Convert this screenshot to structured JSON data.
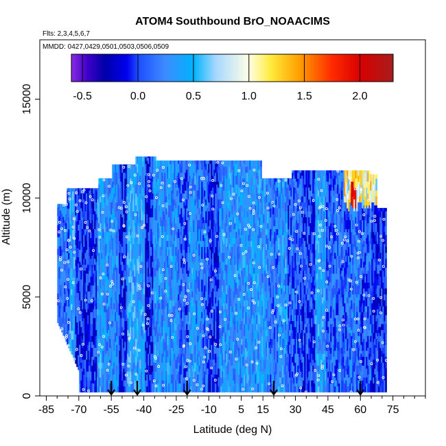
{
  "chart_data": {
    "type": "heatmap",
    "title": "ATOM4 Southbound BrO_NOAACIMS",
    "flights_note": "Flts: 2,3,4,5,6,7",
    "dates_note": "MMDD: 0427,0429,0501,0503,0506,0509",
    "xlabel": "Latitude (deg N)",
    "ylabel": "Altitude (m)",
    "xlim": [
      -88,
      90
    ],
    "ylim": [
      0,
      18000
    ],
    "x_ticks": [
      -85,
      -70,
      -55,
      -40,
      -25,
      -10,
      5,
      15,
      30,
      45,
      60,
      75
    ],
    "x_tick_labels": [
      "-85",
      "-70",
      "-55",
      "-40",
      "-25",
      "-10",
      "5",
      "15",
      "30",
      "45",
      "60",
      "75"
    ],
    "y_ticks": [
      0,
      5000,
      10000,
      15000
    ],
    "y_tick_labels": [
      "0",
      "5000",
      "10000",
      "15000"
    ],
    "colorbar": {
      "range": [
        -0.6,
        2.3
      ],
      "ticks": [
        -0.5,
        0.0,
        0.5,
        1.0,
        1.5,
        2.0
      ],
      "tick_labels": [
        "-0.5",
        "0.0",
        "0.5",
        "1.0",
        "1.5",
        "2.0"
      ],
      "stops": [
        {
          "value": -0.6,
          "color": "#8a2be2"
        },
        {
          "value": -0.45,
          "color": "#3d00c8"
        },
        {
          "value": -0.3,
          "color": "#0000a8"
        },
        {
          "value": -0.1,
          "color": "#0000ee"
        },
        {
          "value": 0.0,
          "color": "#1f4dff"
        },
        {
          "value": 0.25,
          "color": "#3c8cff"
        },
        {
          "value": 0.5,
          "color": "#00b2ff"
        },
        {
          "value": 0.7,
          "color": "#a5d8ff"
        },
        {
          "value": 1.0,
          "color": "#ffffe6"
        },
        {
          "value": 1.2,
          "color": "#ffea3a"
        },
        {
          "value": 1.45,
          "color": "#ffa000"
        },
        {
          "value": 1.75,
          "color": "#ff2a00"
        },
        {
          "value": 2.0,
          "color": "#d80000"
        },
        {
          "value": 2.3,
          "color": "#a81c1c"
        }
      ]
    },
    "data_extent": {
      "lat_min": -80,
      "lat_max": 72
    },
    "profile_marker_latitudes": [
      -55,
      -43,
      -20,
      20,
      60
    ]
  }
}
